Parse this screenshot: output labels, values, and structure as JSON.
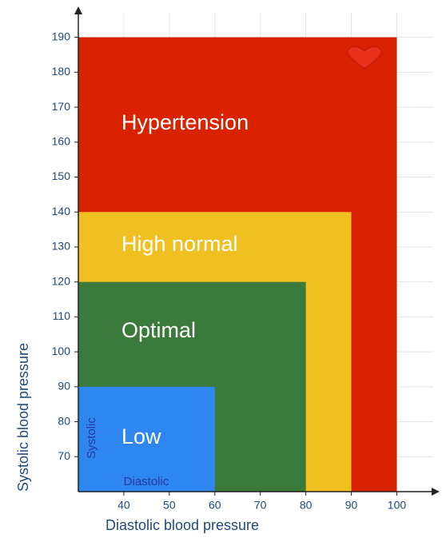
{
  "chart_data": {
    "type": "region",
    "categories": [
      "Hypertension",
      "High normal",
      "Optimal",
      "Low"
    ],
    "x": [
      100,
      90,
      80,
      60
    ],
    "values": [
      190,
      140,
      120,
      90
    ],
    "colors": [
      "#d92200",
      "#f0c020",
      "#3a7a3a",
      "#2e86f0"
    ],
    "xlim": [
      30,
      108
    ],
    "ylim": [
      60,
      197
    ],
    "xticks": [
      40,
      50,
      60,
      70,
      80,
      90,
      100
    ],
    "yticks": [
      70,
      80,
      90,
      100,
      110,
      120,
      130,
      140,
      150,
      160,
      170,
      180,
      190
    ],
    "xlabel": "Diastolic blood pressure",
    "ylabel": "Systolic blood pressure",
    "annotations": [
      "Systolic",
      "Diastolic"
    ],
    "grid": true
  }
}
